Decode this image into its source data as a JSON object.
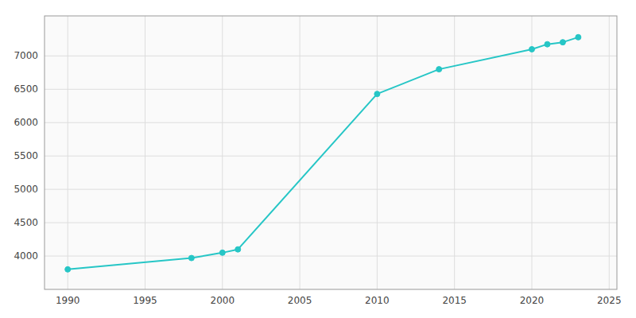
{
  "chart_data": {
    "type": "line",
    "x": [
      1990,
      1998,
      2000,
      2001,
      2010,
      2014,
      2020,
      2021,
      2022,
      2023
    ],
    "values": [
      3800,
      3970,
      4050,
      4100,
      6430,
      6800,
      7100,
      7175,
      7205,
      7280
    ],
    "color": "#26C6C6",
    "marker": "circle",
    "xlim": [
      1988.5,
      2025.5
    ],
    "ylim": [
      3500,
      7600
    ],
    "xticks": [
      1990,
      1995,
      2000,
      2005,
      2010,
      2015,
      2020,
      2025
    ],
    "yticks": [
      4000,
      4500,
      5000,
      5500,
      6000,
      6500,
      7000
    ],
    "grid": true
  }
}
